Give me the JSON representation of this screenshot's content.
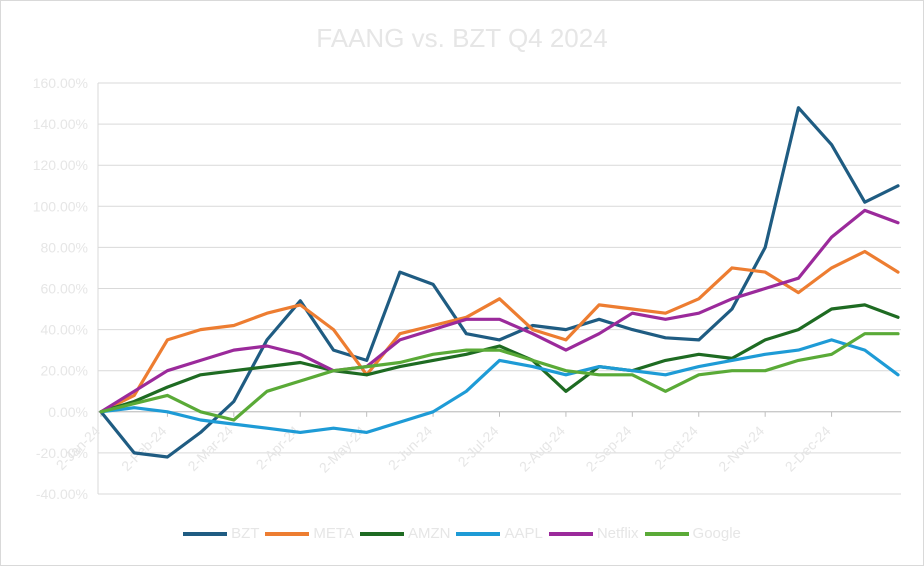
{
  "chart_data": {
    "type": "line",
    "title": "FAANG vs. BZT Q4 2024",
    "xlabel": "",
    "ylabel": "",
    "x_ticks": [
      "2-Jan-24",
      "2-Feb-24",
      "2-Mar-24",
      "2-Apr-24",
      "2-May-24",
      "2-Jun-24",
      "2-Jul-24",
      "2-Aug-24",
      "2-Sep-24",
      "2-Oct-24",
      "2-Nov-24",
      "2-Dec-24"
    ],
    "x": [
      "2-Jan-24",
      "16-Jan-24",
      "2-Feb-24",
      "16-Feb-24",
      "2-Mar-24",
      "16-Mar-24",
      "2-Apr-24",
      "16-Apr-24",
      "2-May-24",
      "16-May-24",
      "2-Jun-24",
      "16-Jun-24",
      "2-Jul-24",
      "16-Jul-24",
      "2-Aug-24",
      "16-Aug-24",
      "2-Sep-24",
      "16-Sep-24",
      "2-Oct-24",
      "16-Oct-24",
      "2-Nov-24",
      "16-Nov-24",
      "2-Dec-24",
      "16-Dec-24",
      "31-Dec-24"
    ],
    "y_ticks": [
      "-40.00%",
      "-20.00%",
      "0.00%",
      "20.00%",
      "40.00%",
      "60.00%",
      "80.00%",
      "100.00%",
      "120.00%",
      "140.00%",
      "160.00%"
    ],
    "ylim": [
      -40,
      160
    ],
    "grid": true,
    "legend_position": "bottom",
    "series": [
      {
        "name": "BZT",
        "color": "#1f5c82",
        "values": [
          0,
          -20,
          -22,
          -10,
          5,
          35,
          54,
          30,
          25,
          68,
          62,
          38,
          35,
          42,
          40,
          45,
          40,
          36,
          35,
          50,
          80,
          148,
          130,
          102,
          110
        ]
      },
      {
        "name": "META",
        "color": "#ed7d31",
        "values": [
          0,
          8,
          35,
          40,
          42,
          48,
          52,
          40,
          18,
          38,
          42,
          46,
          55,
          40,
          35,
          52,
          50,
          48,
          55,
          70,
          68,
          58,
          70,
          78,
          68
        ]
      },
      {
        "name": "AMZN",
        "color": "#1e6b22",
        "values": [
          0,
          5,
          12,
          18,
          20,
          22,
          24,
          20,
          18,
          22,
          25,
          28,
          32,
          25,
          10,
          22,
          20,
          25,
          28,
          26,
          35,
          40,
          50,
          52,
          46
        ]
      },
      {
        "name": "AAPL",
        "color": "#1e9bd6",
        "values": [
          0,
          2,
          0,
          -4,
          -6,
          -8,
          -10,
          -8,
          -10,
          -5,
          0,
          10,
          25,
          22,
          18,
          22,
          20,
          18,
          22,
          25,
          28,
          30,
          35,
          30,
          18
        ]
      },
      {
        "name": "Netflix",
        "color": "#9b2a9b",
        "values": [
          0,
          10,
          20,
          25,
          30,
          32,
          28,
          20,
          22,
          35,
          40,
          45,
          45,
          38,
          30,
          38,
          48,
          45,
          48,
          55,
          60,
          65,
          85,
          98,
          92
        ]
      },
      {
        "name": "Google",
        "color": "#5aaa37",
        "values": [
          0,
          4,
          8,
          0,
          -4,
          10,
          15,
          20,
          22,
          24,
          28,
          30,
          30,
          25,
          20,
          18,
          18,
          10,
          18,
          20,
          20,
          25,
          28,
          38,
          38
        ]
      }
    ]
  }
}
